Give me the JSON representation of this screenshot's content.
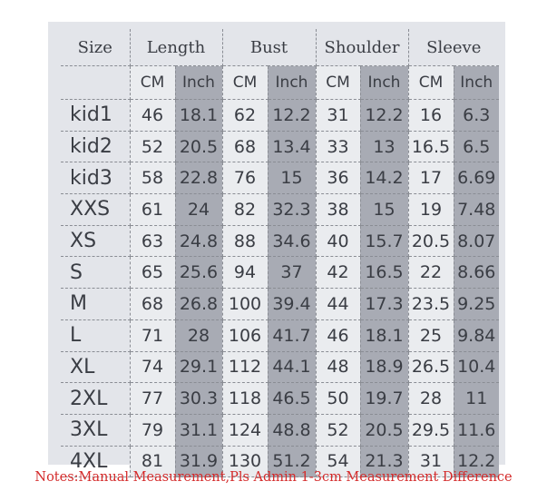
{
  "table": {
    "headers": [
      "Size",
      "Length",
      "Bust",
      "Shoulder",
      "Sleeve"
    ],
    "units": [
      "CM",
      "Inch"
    ],
    "rows": [
      [
        "kid1",
        "46",
        "18.1",
        "62",
        "12.2",
        "31",
        "12.2",
        "16",
        "6.3"
      ],
      [
        "kid2",
        "52",
        "20.5",
        "68",
        "13.4",
        "33",
        "13",
        "16.5",
        "6.5"
      ],
      [
        "kid3",
        "58",
        "22.8",
        "76",
        "15",
        "36",
        "14.2",
        "17",
        "6.69"
      ],
      [
        "XXS",
        "61",
        "24",
        "82",
        "32.3",
        "38",
        "15",
        "19",
        "7.48"
      ],
      [
        "XS",
        "63",
        "24.8",
        "88",
        "34.6",
        "40",
        "15.7",
        "20.5",
        "8.07"
      ],
      [
        "S",
        "65",
        "25.6",
        "94",
        "37",
        "42",
        "16.5",
        "22",
        "8.66"
      ],
      [
        "M",
        "68",
        "26.8",
        "100",
        "39.4",
        "44",
        "17.3",
        "23.5",
        "9.25"
      ],
      [
        "L",
        "71",
        "28",
        "106",
        "41.7",
        "46",
        "18.1",
        "25",
        "9.84"
      ],
      [
        "XL",
        "74",
        "29.1",
        "112",
        "44.1",
        "48",
        "18.9",
        "26.5",
        "10.4"
      ],
      [
        "2XL",
        "77",
        "30.3",
        "118",
        "46.5",
        "50",
        "19.7",
        "28",
        "11"
      ],
      [
        "3XL",
        "79",
        "31.1",
        "124",
        "48.8",
        "52",
        "20.5",
        "29.5",
        "11.6"
      ],
      [
        "4XL",
        "81",
        "31.9",
        "130",
        "51.2",
        "54",
        "21.3",
        "31",
        "12.2"
      ]
    ]
  },
  "note": "Notes:Manual Measurement,Pls Admin 1-3cm Measurement Difference",
  "colors": {
    "note": "#d42a2a",
    "inch_column": "#a8abb4",
    "table_bg": "#e3e5ea"
  }
}
